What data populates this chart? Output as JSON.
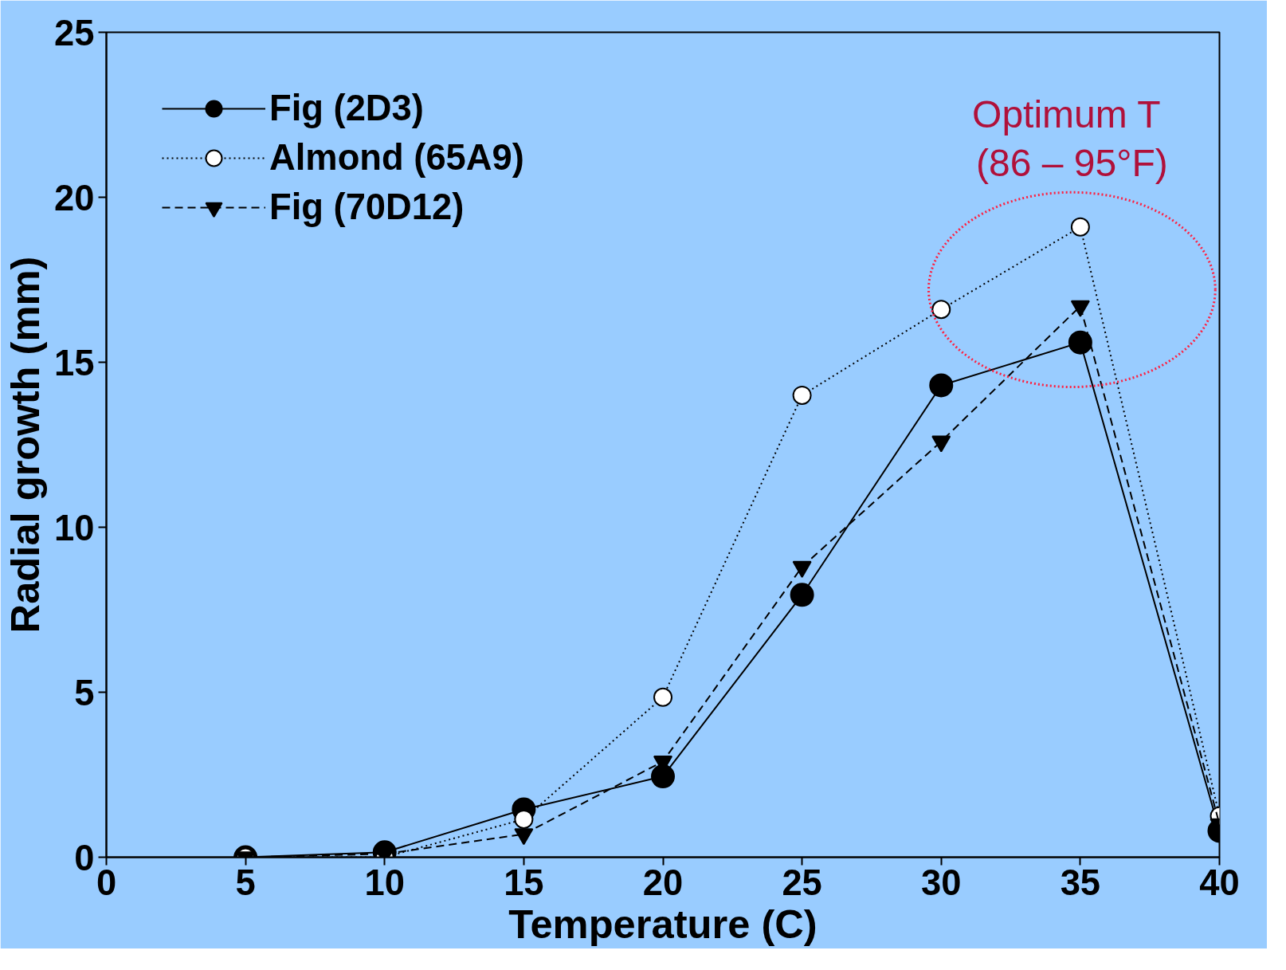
{
  "chart_data": {
    "type": "line",
    "xlabel": "Temperature (C)",
    "ylabel": "Radial growth (mm)",
    "x": [
      5,
      10,
      15,
      20,
      25,
      30,
      35,
      40
    ],
    "series": [
      {
        "name": "Fig (2D3)",
        "color": "#000000",
        "marker": "circle",
        "line_style": "solid",
        "values": [
          0,
          0.15,
          1.45,
          2.45,
          7.95,
          14.3,
          15.6,
          0.8
        ]
      },
      {
        "name": "Almond (65A9)",
        "color": "#ffffff",
        "marker": "circle",
        "line_style": "dotted",
        "values": [
          0,
          0,
          1.15,
          4.85,
          14.0,
          16.6,
          19.1,
          1.25
        ]
      },
      {
        "name": "Fig (70D12)",
        "color": "#000000",
        "marker": "triangle",
        "line_style": "dashed",
        "values": [
          0,
          0.1,
          0.7,
          2.9,
          8.8,
          12.6,
          16.7,
          1.0
        ]
      }
    ],
    "xlim": [
      0,
      40
    ],
    "xticks": [
      0,
      5,
      10,
      15,
      20,
      25,
      30,
      35,
      40
    ],
    "ylim": [
      0,
      25
    ],
    "yticks": [
      0,
      5,
      10,
      15,
      20,
      25
    ],
    "annotations": [
      "Optimum  T\n(86 – 95°F)"
    ],
    "legend": "top left",
    "grid": false
  }
}
